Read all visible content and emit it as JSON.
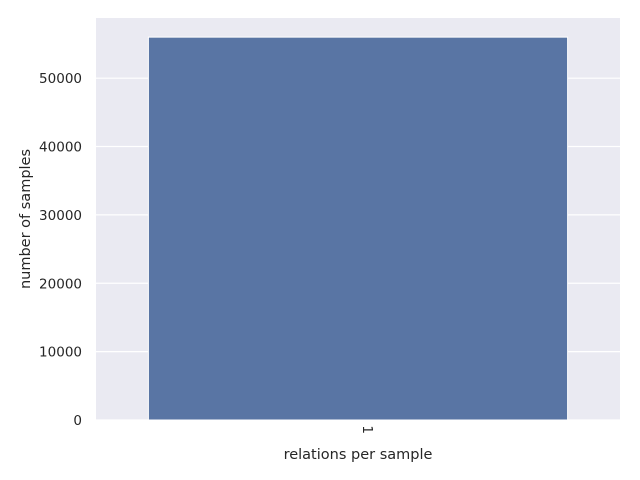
{
  "chart_data": {
    "type": "bar",
    "title": "",
    "xlabel": "relations per sample",
    "ylabel": "number of samples",
    "categories": [
      "1"
    ],
    "values": [
      56000
    ],
    "ylim": [
      0,
      58800
    ],
    "yticks": [
      0,
      10000,
      20000,
      30000,
      40000,
      50000
    ],
    "ytick_labels": [
      "0",
      "10000",
      "20000",
      "30000",
      "40000",
      "50000"
    ],
    "grid": true,
    "legend": "none",
    "colors": {
      "bar": "#5975a4",
      "axes_background": "#eaeaf2",
      "grid": "#ffffff",
      "text": "#262626"
    }
  }
}
